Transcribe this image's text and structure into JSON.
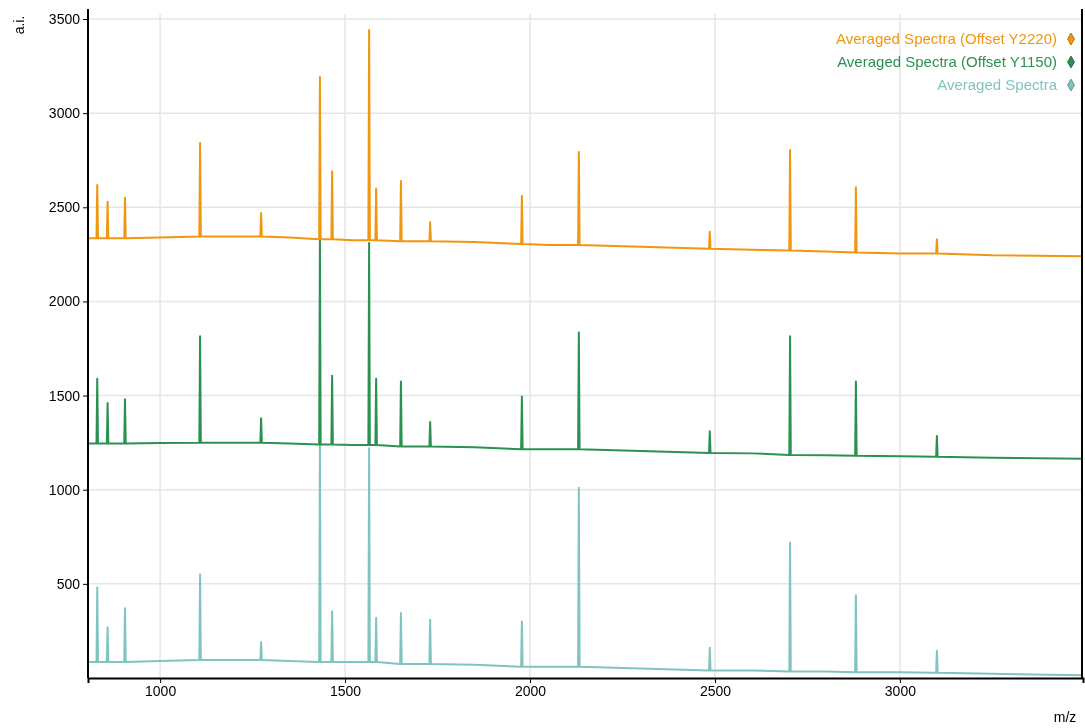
{
  "chart_data": {
    "type": "line",
    "xlabel": "m/z",
    "ylabel": "a.i.",
    "x": [
      805,
      828,
      830,
      832,
      856,
      858,
      860,
      903,
      905,
      907,
      1000,
      1106,
      1108,
      1110,
      1200,
      1271,
      1273,
      1275,
      1350,
      1430,
      1432,
      1434,
      1463,
      1465,
      1467,
      1520,
      1563,
      1565,
      1567,
      1582,
      1584,
      1586,
      1649,
      1651,
      1653,
      1728,
      1730,
      1732,
      1850,
      1976,
      1978,
      1980,
      2050,
      2130,
      2132,
      2134,
      2300,
      2484,
      2486,
      2488,
      2600,
      2701,
      2703,
      2705,
      2800,
      2879,
      2881,
      2883,
      3000,
      3098,
      3100,
      3102,
      3250,
      3495
    ],
    "series": [
      {
        "name": "Averaged Spectra (Offset Y2220)",
        "color": "#f0960f",
        "values": [
          2335,
          2335,
          2618,
          2335,
          2335,
          2530,
          2335,
          2335,
          2550,
          2335,
          2340,
          2345,
          2841,
          2345,
          2345,
          2345,
          2470,
          2345,
          2340,
          2330,
          3192,
          2330,
          2330,
          2692,
          2330,
          2325,
          2325,
          3441,
          2325,
          2325,
          2600,
          2325,
          2320,
          2639,
          2320,
          2320,
          2420,
          2320,
          2315,
          2305,
          2560,
          2305,
          2300,
          2300,
          2793,
          2300,
          2290,
          2280,
          2370,
          2280,
          2275,
          2270,
          2804,
          2270,
          2265,
          2260,
          2607,
          2260,
          2255,
          2255,
          2330,
          2255,
          2245,
          2240
        ]
      },
      {
        "name": "Averaged Spectra (Offset Y1150)",
        "color": "#2b9151",
        "values": [
          1245,
          1245,
          1590,
          1245,
          1245,
          1460,
          1245,
          1245,
          1480,
          1245,
          1248,
          1250,
          1815,
          1250,
          1250,
          1250,
          1380,
          1250,
          1245,
          1240,
          2330,
          1240,
          1240,
          1605,
          1240,
          1238,
          1238,
          2310,
          1238,
          1238,
          1590,
          1238,
          1230,
          1575,
          1230,
          1230,
          1360,
          1230,
          1225,
          1215,
          1495,
          1215,
          1215,
          1215,
          1835,
          1215,
          1205,
          1195,
          1310,
          1195,
          1193,
          1185,
          1815,
          1185,
          1183,
          1180,
          1575,
          1180,
          1178,
          1175,
          1285,
          1175,
          1170,
          1165
        ]
      },
      {
        "name": "Averaged Spectra",
        "color": "#80c4c0",
        "values": [
          85,
          85,
          480,
          85,
          85,
          270,
          85,
          85,
          370,
          85,
          90,
          95,
          550,
          95,
          95,
          95,
          190,
          95,
          90,
          85,
          1240,
          85,
          85,
          355,
          85,
          85,
          85,
          1220,
          85,
          85,
          320,
          85,
          75,
          345,
          75,
          75,
          310,
          75,
          70,
          60,
          300,
          60,
          60,
          60,
          1010,
          60,
          50,
          40,
          160,
          40,
          40,
          35,
          720,
          35,
          35,
          30,
          440,
          30,
          30,
          28,
          145,
          28,
          22,
          15
        ]
      }
    ],
    "xlim": [
      805,
      3495
    ],
    "ylim": [
      0,
      3500
    ],
    "xticks": [
      1000,
      1500,
      2000,
      2500,
      3000
    ],
    "yticks": [
      500,
      1000,
      1500,
      2000,
      2500,
      3000,
      3500
    ],
    "grid": true,
    "legend": "top right",
    "marker": "none",
    "line_style": "solid"
  }
}
